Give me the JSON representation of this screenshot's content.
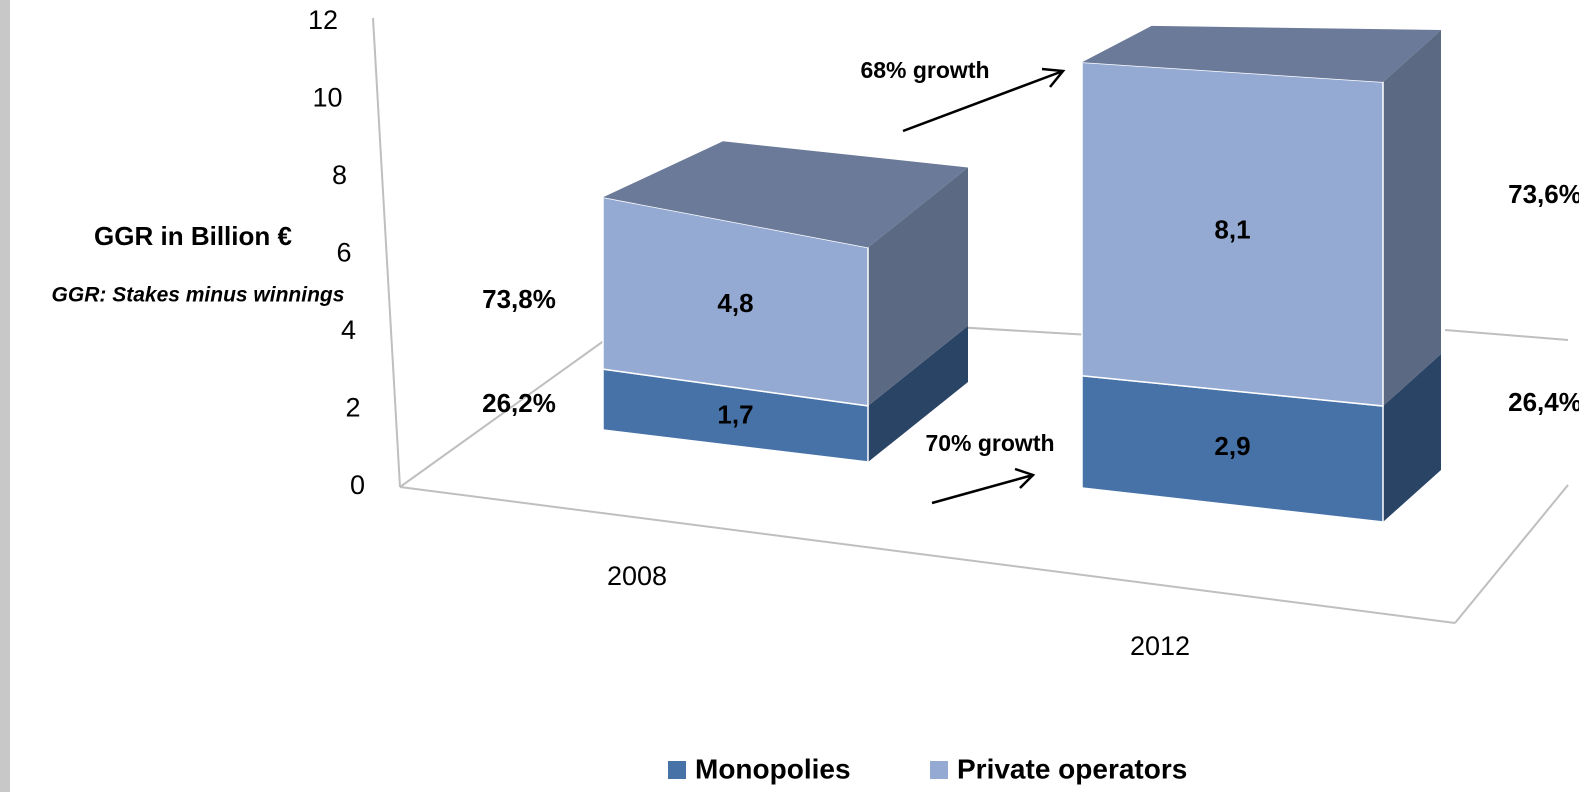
{
  "chart_data": {
    "type": "bar",
    "stacked": true,
    "y_label": "GGR in Billion €",
    "subtitle": "GGR: Stakes minus winnings",
    "categories": [
      "2008",
      "2012"
    ],
    "series": [
      {
        "name": "Monopolies",
        "color": "#4672a8",
        "values": [
          1.7,
          2.9
        ],
        "value_labels": [
          "1,7",
          "2,9"
        ],
        "share_labels": [
          "26,2%",
          "26,4%"
        ]
      },
      {
        "name": "Private operators",
        "color": "#95aad3",
        "values": [
          4.8,
          8.1
        ],
        "value_labels": [
          "4,8",
          "8,1"
        ],
        "share_labels": [
          "73,8%",
          "73,6%"
        ]
      }
    ],
    "annotations": [
      "68% growth",
      "70% growth"
    ],
    "ylim": [
      0,
      12
    ],
    "yticks": [
      0,
      2,
      4,
      6,
      8,
      10,
      12
    ],
    "grid": false,
    "legend": "bottom"
  }
}
